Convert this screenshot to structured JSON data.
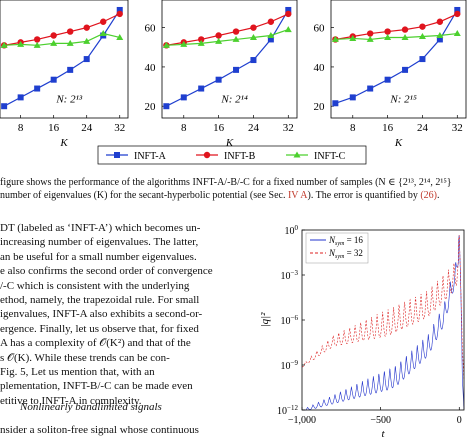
{
  "figure_top": {
    "x_axis_label": "K",
    "legend": [
      {
        "name": "INFT-A",
        "color": "#1f3fcf",
        "marker": "square"
      },
      {
        "name": "INFT-B",
        "color": "#e0141e",
        "marker": "circle"
      },
      {
        "name": "INFT-C",
        "color": "#4cd02e",
        "marker": "triangle"
      }
    ]
  },
  "caption": {
    "line1": "figure shows the performance of the algorithms INFT-A/-B/-C for a fixed number of samples (N ∈ {2¹³, 2¹⁴, 2¹⁵}",
    "line2_a": "number of eigenvalues (K) for the secant-hyperbolic potential (see Sec. ",
    "line2_ref": "IV A",
    "line2_b": "). The error is quantified by ",
    "line2_eq": "(26)",
    "line2_c": "."
  },
  "body_lines": [
    "DT (labeled as ‘INFT-A’) which becomes un-",
    "increasing number of eigenvalues. The latter,",
    "an be useful for a small number eigenvalues.",
    "e also confirms the second order of convergence",
    "/-C which is consistent with the underlying",
    "ethod, namely, the trapezoidal rule. For small",
    "igenvalues, INFT-A also exhibits a second-or-",
    "ergence. Finally, let us observe that, for fixed",
    "A has a complexity of 𝒪(K²) and that of the",
    "s 𝒪(K). While these trends can be con-",
    "Fig. 5, Let us mention that, with an ",
    "plementation, INFT-B/-C can be made even",
    "etitive to INFT-A in complexity."
  ],
  "section_heading": "Nonlinearly bandlimited signals",
  "last_line": "nsider a soliton-free signal whose continuous",
  "chart_data": [
    {
      "type": "line",
      "annotation": "N: 2^13",
      "x": [
        4,
        8,
        12,
        16,
        20,
        24,
        28,
        32
      ],
      "xticks": [
        8,
        16,
        24,
        32
      ],
      "xlabel": "K",
      "series": [
        {
          "name": "INFT-A",
          "values": [
            20,
            24.5,
            29,
            33.5,
            38.5,
            44,
            56,
            69
          ]
        },
        {
          "name": "INFT-B",
          "values": [
            51,
            52.5,
            54,
            56,
            58,
            60,
            63,
            67
          ]
        },
        {
          "name": "INFT-C",
          "values": [
            51,
            51.5,
            51,
            52,
            52,
            53,
            57,
            55
          ]
        }
      ]
    },
    {
      "type": "line",
      "annotation": "N: 2^14",
      "x": [
        4,
        8,
        12,
        16,
        20,
        24,
        28,
        32
      ],
      "xticks": [
        8,
        16,
        24,
        32
      ],
      "yticks": [
        20,
        40,
        60
      ],
      "ylim": [
        14,
        70
      ],
      "xlabel": "K",
      "series": [
        {
          "name": "INFT-A",
          "values": [
            20,
            24.5,
            29,
            33.5,
            38.5,
            43.5,
            54,
            69
          ]
        },
        {
          "name": "INFT-B",
          "values": [
            51,
            52.5,
            54,
            56,
            58,
            60,
            63,
            67
          ]
        },
        {
          "name": "INFT-C",
          "values": [
            51,
            51.5,
            52,
            53,
            54,
            55,
            56,
            59
          ]
        }
      ]
    },
    {
      "type": "line",
      "annotation": "N: 2^15",
      "x": [
        4,
        8,
        12,
        16,
        20,
        24,
        28,
        32
      ],
      "xticks": [
        8,
        16,
        24,
        32
      ],
      "yticks": [
        20,
        40,
        60
      ],
      "ylim": [
        14,
        70
      ],
      "xlabel": "K",
      "series": [
        {
          "name": "INFT-A",
          "values": [
            21.5,
            24.5,
            29,
            33.5,
            38.5,
            44,
            54,
            69
          ]
        },
        {
          "name": "INFT-B",
          "values": [
            54,
            55.5,
            57,
            58,
            59,
            60.5,
            63,
            67
          ]
        },
        {
          "name": "INFT-C",
          "values": [
            54,
            54.5,
            54,
            55,
            55,
            55.5,
            56,
            57
          ]
        }
      ]
    },
    {
      "type": "line",
      "xlabel": "t",
      "ylabel": "|q|²",
      "yscale": "log",
      "xlim": [
        -1000,
        30
      ],
      "ylim": [
        1e-12,
        1
      ],
      "xtick_labels": [
        "−1,000",
        "−500",
        "0"
      ],
      "ytick_labels": [
        "10^0",
        "10^-3",
        "10^-6",
        "10^-9",
        "10^-12"
      ],
      "legend_position": "top-left",
      "series": [
        {
          "name": "N_sym = 16",
          "color": "#2233cc",
          "style": "solid",
          "x": [
            -1000,
            -800,
            -600,
            -400,
            -200,
            -100,
            -20,
            0,
            10,
            20,
            30
          ],
          "y": [
            1e-12,
            1e-11,
            1e-10,
            1e-09,
            1e-07,
            1e-05,
            0.01,
            0.5,
            0.0001,
            1e-10,
            1e-12
          ]
        },
        {
          "name": "N_sym = 32",
          "color": "#dd2222",
          "style": "dashed",
          "x": [
            -1000,
            -800,
            -600,
            -400,
            -200,
            -100,
            -20,
            0,
            10,
            20,
            30
          ],
          "y": [
            1e-09,
            1e-07,
            1e-06,
            1e-05,
            0.0001,
            0.001,
            0.01,
            0.5,
            0.0001,
            1e-08,
            1e-10
          ]
        }
      ]
    }
  ]
}
